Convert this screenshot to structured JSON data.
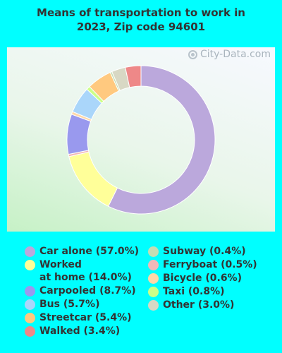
{
  "chart_data": {
    "type": "pie",
    "style": "donut",
    "title_line1": "Means of transportation to work in",
    "title_line2": "2023, Zip code 94601",
    "watermark": "City-Data.com",
    "slices": [
      {
        "label": "Car alone (57.0%)",
        "value": 57.0,
        "color": "#BBA8DC"
      },
      {
        "label": "Worked\nat home (14.0%)",
        "value": 14.0,
        "color": "#FFFF99"
      },
      {
        "label": "Ferryboat (0.5%)",
        "value": 0.5,
        "color": "#F2B8B8"
      },
      {
        "label": "Carpooled (8.7%)",
        "value": 8.7,
        "color": "#9999EE"
      },
      {
        "label": "Bicycle (0.6%)",
        "value": 0.6,
        "color": "#FFD8A8"
      },
      {
        "label": "Bus (5.7%)",
        "value": 5.7,
        "color": "#AAD6FA"
      },
      {
        "label": "Taxi (0.8%)",
        "value": 0.8,
        "color": "#CCFF88"
      },
      {
        "label": "Streetcar (5.4%)",
        "value": 5.4,
        "color": "#FFC97F"
      },
      {
        "label": "Subway (0.4%)",
        "value": 0.4,
        "color": "#C4DDB3"
      },
      {
        "label": "Other (3.0%)",
        "value": 3.0,
        "color": "#D8D8C4"
      },
      {
        "label": "Walked (3.4%)",
        "value": 3.4,
        "color": "#EE8888"
      }
    ],
    "legend_left": [
      "Car alone (57.0%)",
      "Worked\nat home (14.0%)",
      "Carpooled (8.7%)",
      "Bus (5.7%)",
      "Streetcar (5.4%)",
      "Walked (3.4%)"
    ],
    "legend_right": [
      "Subway (0.4%)",
      "Ferryboat (0.5%)",
      "Bicycle (0.6%)",
      "Taxi (0.8%)",
      "Other (3.0%)"
    ]
  }
}
